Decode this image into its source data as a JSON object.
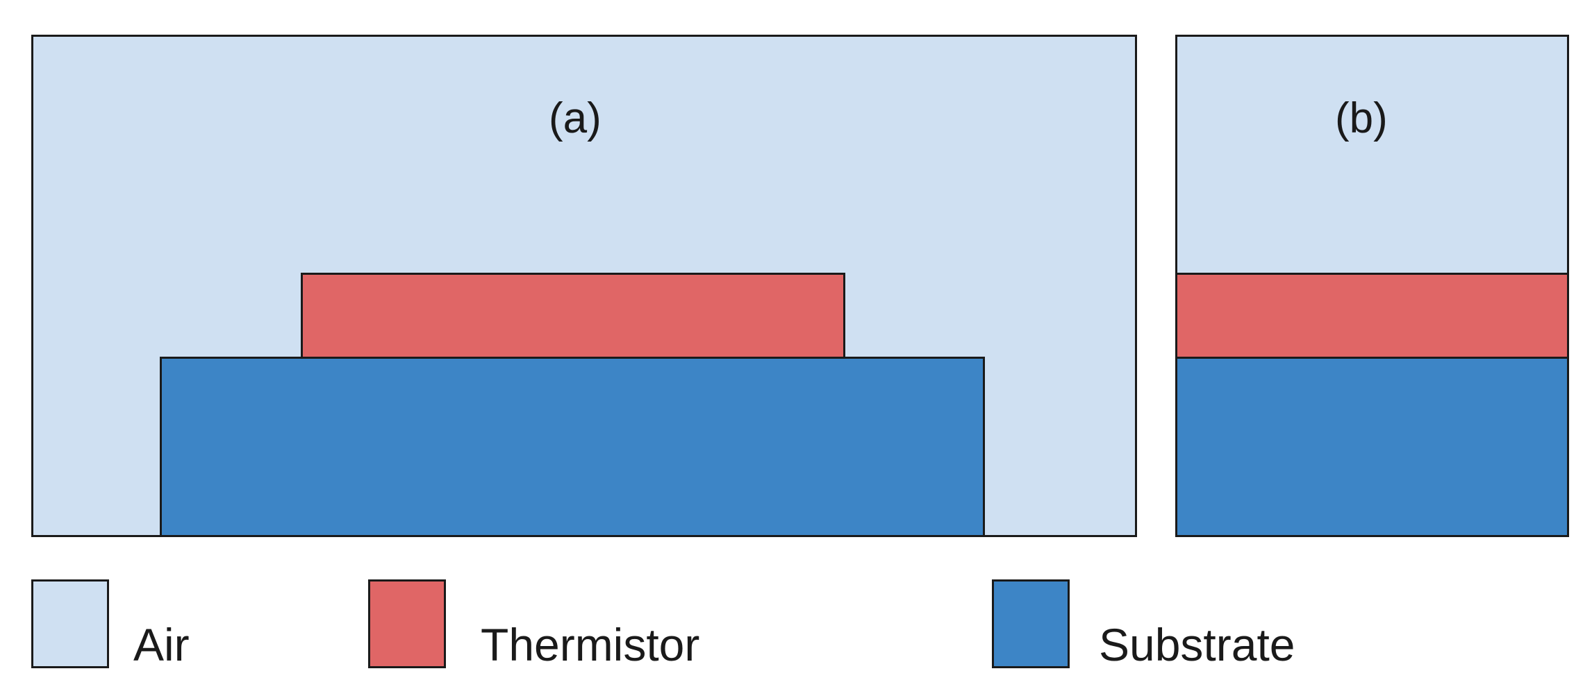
{
  "panels": {
    "a": {
      "label": "(a)"
    },
    "b": {
      "label": "(b)"
    }
  },
  "colors": {
    "air": "#cfe0f2",
    "thermistor": "#e06666",
    "substrate": "#3d85c6",
    "outline": "#1a1a1a"
  },
  "legend": [
    {
      "label": "Air",
      "color_key": "air"
    },
    {
      "label": "Thermistor",
      "color_key": "thermistor"
    },
    {
      "label": "Substrate",
      "color_key": "substrate"
    }
  ]
}
